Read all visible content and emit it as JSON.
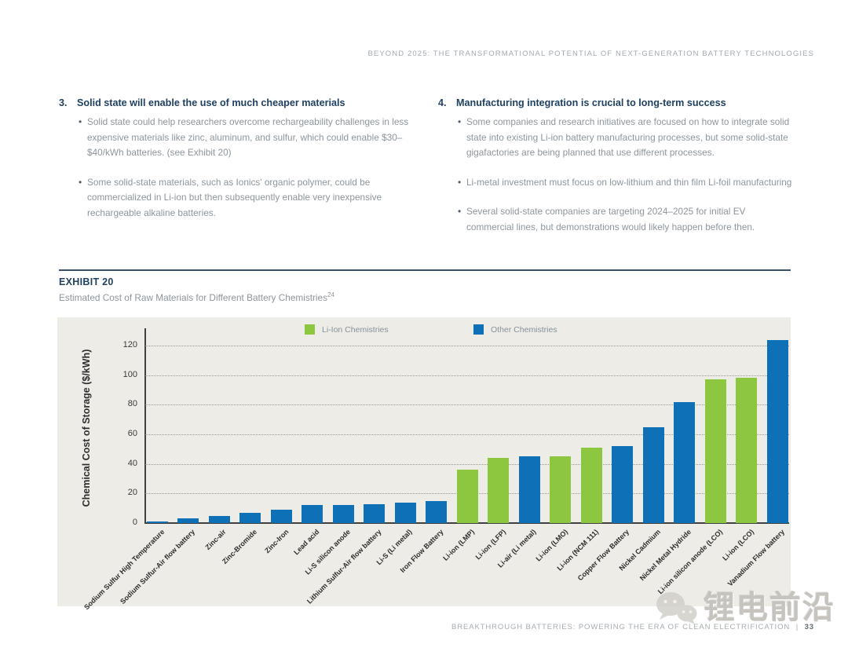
{
  "header": {
    "text": "BEYOND 2025: THE TRANSFORMATIONAL POTENTIAL OF NEXT-GENERATION BATTERY TECHNOLOGIES"
  },
  "sections": [
    {
      "number": "3.",
      "title": "Solid state will enable the use of much cheaper materials",
      "bullets": [
        "Solid state could help researchers overcome rechargeability challenges in less expensive materials like zinc, aluminum, and sulfur, which could enable $30–$40/kWh batteries. (see Exhibit 20)",
        "Some solid-state materials, such as Ionics' organic polymer, could be commercialized in Li-ion but then subsequently enable very inexpensive rechargeable alkaline batteries."
      ]
    },
    {
      "number": "4.",
      "title": "Manufacturing integration is crucial to long-term success",
      "bullets": [
        "Some companies and research initiatives are focused on how to integrate solid state into existing Li-ion battery manufacturing processes, but some solid-state gigafactories are being planned that use different processes.",
        "Li-metal investment must focus on low-lithium and thin film Li-foil manufacturing",
        "Several solid-state companies are targeting 2024–2025 for initial EV commercial lines, but demonstrations would likely happen before then."
      ]
    }
  ],
  "exhibit": {
    "label": "EXHIBIT 20",
    "title": "Estimated Cost of Raw Materials for Different Battery Chemistries",
    "footnote_ref": "24"
  },
  "chart_data": {
    "type": "bar",
    "title": "Estimated Cost of Raw Materials for Different Battery Chemistries",
    "xlabel": "",
    "ylabel": "Chemical Cost of Storage ($/kWh)",
    "ylim": [
      0,
      130
    ],
    "yticks": [
      0,
      20,
      40,
      60,
      80,
      100,
      120
    ],
    "grid": "horizontal dotted",
    "legend_position": "top inside",
    "legend": [
      {
        "label": "Li-Ion Chemistries",
        "color": "#8dc63f"
      },
      {
        "label": "Other Chemistries",
        "color": "#0e71b8"
      }
    ],
    "colors": {
      "li-ion": "#8dc63f",
      "other": "#0e71b8"
    },
    "bars": [
      {
        "label": "Sodium Sulfur High Temperature",
        "value": 1,
        "group": "other"
      },
      {
        "label": "Sodium Sulfur-Air flow battery",
        "value": 3,
        "group": "other"
      },
      {
        "label": "Zinc-air",
        "value": 5,
        "group": "other"
      },
      {
        "label": "Zinc-Bromide",
        "value": 7,
        "group": "other"
      },
      {
        "label": "Zinc-Iron",
        "value": 9,
        "group": "other"
      },
      {
        "label": "Lead acid",
        "value": 12,
        "group": "other"
      },
      {
        "label": "Li-S silicon anode",
        "value": 12,
        "group": "other"
      },
      {
        "label": "Lithium Sulfur-Air flow battery",
        "value": 13,
        "group": "other"
      },
      {
        "label": "Li-S (Li metal)",
        "value": 14,
        "group": "other"
      },
      {
        "label": "Iron Flow Battery",
        "value": 15,
        "group": "other"
      },
      {
        "label": "Li-ion (LMP)",
        "value": 36,
        "group": "li-ion"
      },
      {
        "label": "Li-ion (LFP)",
        "value": 44,
        "group": "li-ion"
      },
      {
        "label": "Li-air (Li metal)",
        "value": 45,
        "group": "other"
      },
      {
        "label": "Li-ion (LMO)",
        "value": 45,
        "group": "li-ion"
      },
      {
        "label": "Li-ion (NCM 111)",
        "value": 51,
        "group": "li-ion"
      },
      {
        "label": "Copper Flow Battery",
        "value": 52,
        "group": "other"
      },
      {
        "label": "Nickel Cadmium",
        "value": 65,
        "group": "other"
      },
      {
        "label": "Nickel Metal Hydride",
        "value": 82,
        "group": "other"
      },
      {
        "label": "Li-ion silicon anode (LCO)",
        "value": 97,
        "group": "li-ion"
      },
      {
        "label": "Li-ion (LCO)",
        "value": 98,
        "group": "li-ion"
      },
      {
        "label": "Vanadium Flow battery",
        "value": 124,
        "group": "other"
      }
    ]
  },
  "footer": {
    "text": "BREAKTHROUGH BATTERIES: POWERING THE ERA OF CLEAN ELECTRIFICATION",
    "separator": "|",
    "page_number": "33"
  },
  "watermark": {
    "text": "锂电前沿"
  }
}
